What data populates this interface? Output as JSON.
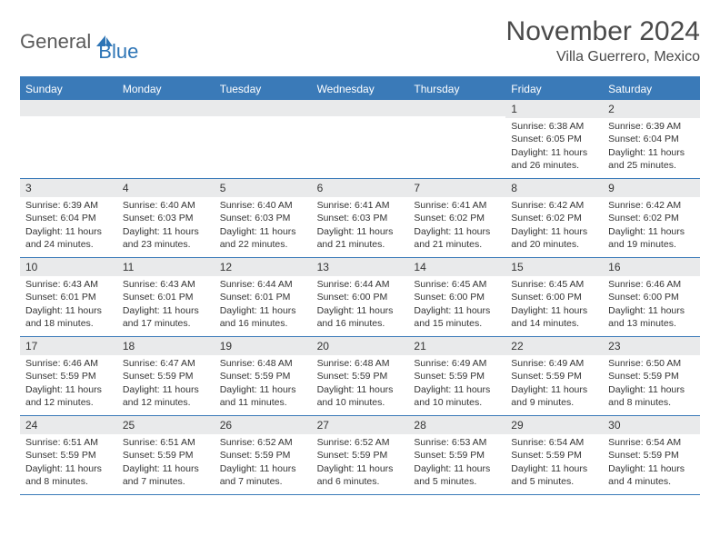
{
  "logo": {
    "text1": "General",
    "text2": "Blue"
  },
  "title": "November 2024",
  "location": "Villa Guerrero, Mexico",
  "colors": {
    "header_bg": "#3a7ab8",
    "header_text": "#ffffff",
    "daynum_bg": "#e9eaeb",
    "border": "#3a7ab8",
    "logo_gray": "#5a5a5a",
    "logo_blue": "#2e75b6",
    "text": "#333333"
  },
  "day_headers": [
    "Sunday",
    "Monday",
    "Tuesday",
    "Wednesday",
    "Thursday",
    "Friday",
    "Saturday"
  ],
  "weeks": [
    [
      {
        "empty": true
      },
      {
        "empty": true
      },
      {
        "empty": true
      },
      {
        "empty": true
      },
      {
        "empty": true
      },
      {
        "num": "1",
        "sunrise": "Sunrise: 6:38 AM",
        "sunset": "Sunset: 6:05 PM",
        "daylight": "Daylight: 11 hours and 26 minutes."
      },
      {
        "num": "2",
        "sunrise": "Sunrise: 6:39 AM",
        "sunset": "Sunset: 6:04 PM",
        "daylight": "Daylight: 11 hours and 25 minutes."
      }
    ],
    [
      {
        "num": "3",
        "sunrise": "Sunrise: 6:39 AM",
        "sunset": "Sunset: 6:04 PM",
        "daylight": "Daylight: 11 hours and 24 minutes."
      },
      {
        "num": "4",
        "sunrise": "Sunrise: 6:40 AM",
        "sunset": "Sunset: 6:03 PM",
        "daylight": "Daylight: 11 hours and 23 minutes."
      },
      {
        "num": "5",
        "sunrise": "Sunrise: 6:40 AM",
        "sunset": "Sunset: 6:03 PM",
        "daylight": "Daylight: 11 hours and 22 minutes."
      },
      {
        "num": "6",
        "sunrise": "Sunrise: 6:41 AM",
        "sunset": "Sunset: 6:03 PM",
        "daylight": "Daylight: 11 hours and 21 minutes."
      },
      {
        "num": "7",
        "sunrise": "Sunrise: 6:41 AM",
        "sunset": "Sunset: 6:02 PM",
        "daylight": "Daylight: 11 hours and 21 minutes."
      },
      {
        "num": "8",
        "sunrise": "Sunrise: 6:42 AM",
        "sunset": "Sunset: 6:02 PM",
        "daylight": "Daylight: 11 hours and 20 minutes."
      },
      {
        "num": "9",
        "sunrise": "Sunrise: 6:42 AM",
        "sunset": "Sunset: 6:02 PM",
        "daylight": "Daylight: 11 hours and 19 minutes."
      }
    ],
    [
      {
        "num": "10",
        "sunrise": "Sunrise: 6:43 AM",
        "sunset": "Sunset: 6:01 PM",
        "daylight": "Daylight: 11 hours and 18 minutes."
      },
      {
        "num": "11",
        "sunrise": "Sunrise: 6:43 AM",
        "sunset": "Sunset: 6:01 PM",
        "daylight": "Daylight: 11 hours and 17 minutes."
      },
      {
        "num": "12",
        "sunrise": "Sunrise: 6:44 AM",
        "sunset": "Sunset: 6:01 PM",
        "daylight": "Daylight: 11 hours and 16 minutes."
      },
      {
        "num": "13",
        "sunrise": "Sunrise: 6:44 AM",
        "sunset": "Sunset: 6:00 PM",
        "daylight": "Daylight: 11 hours and 16 minutes."
      },
      {
        "num": "14",
        "sunrise": "Sunrise: 6:45 AM",
        "sunset": "Sunset: 6:00 PM",
        "daylight": "Daylight: 11 hours and 15 minutes."
      },
      {
        "num": "15",
        "sunrise": "Sunrise: 6:45 AM",
        "sunset": "Sunset: 6:00 PM",
        "daylight": "Daylight: 11 hours and 14 minutes."
      },
      {
        "num": "16",
        "sunrise": "Sunrise: 6:46 AM",
        "sunset": "Sunset: 6:00 PM",
        "daylight": "Daylight: 11 hours and 13 minutes."
      }
    ],
    [
      {
        "num": "17",
        "sunrise": "Sunrise: 6:46 AM",
        "sunset": "Sunset: 5:59 PM",
        "daylight": "Daylight: 11 hours and 12 minutes."
      },
      {
        "num": "18",
        "sunrise": "Sunrise: 6:47 AM",
        "sunset": "Sunset: 5:59 PM",
        "daylight": "Daylight: 11 hours and 12 minutes."
      },
      {
        "num": "19",
        "sunrise": "Sunrise: 6:48 AM",
        "sunset": "Sunset: 5:59 PM",
        "daylight": "Daylight: 11 hours and 11 minutes."
      },
      {
        "num": "20",
        "sunrise": "Sunrise: 6:48 AM",
        "sunset": "Sunset: 5:59 PM",
        "daylight": "Daylight: 11 hours and 10 minutes."
      },
      {
        "num": "21",
        "sunrise": "Sunrise: 6:49 AM",
        "sunset": "Sunset: 5:59 PM",
        "daylight": "Daylight: 11 hours and 10 minutes."
      },
      {
        "num": "22",
        "sunrise": "Sunrise: 6:49 AM",
        "sunset": "Sunset: 5:59 PM",
        "daylight": "Daylight: 11 hours and 9 minutes."
      },
      {
        "num": "23",
        "sunrise": "Sunrise: 6:50 AM",
        "sunset": "Sunset: 5:59 PM",
        "daylight": "Daylight: 11 hours and 8 minutes."
      }
    ],
    [
      {
        "num": "24",
        "sunrise": "Sunrise: 6:51 AM",
        "sunset": "Sunset: 5:59 PM",
        "daylight": "Daylight: 11 hours and 8 minutes."
      },
      {
        "num": "25",
        "sunrise": "Sunrise: 6:51 AM",
        "sunset": "Sunset: 5:59 PM",
        "daylight": "Daylight: 11 hours and 7 minutes."
      },
      {
        "num": "26",
        "sunrise": "Sunrise: 6:52 AM",
        "sunset": "Sunset: 5:59 PM",
        "daylight": "Daylight: 11 hours and 7 minutes."
      },
      {
        "num": "27",
        "sunrise": "Sunrise: 6:52 AM",
        "sunset": "Sunset: 5:59 PM",
        "daylight": "Daylight: 11 hours and 6 minutes."
      },
      {
        "num": "28",
        "sunrise": "Sunrise: 6:53 AM",
        "sunset": "Sunset: 5:59 PM",
        "daylight": "Daylight: 11 hours and 5 minutes."
      },
      {
        "num": "29",
        "sunrise": "Sunrise: 6:54 AM",
        "sunset": "Sunset: 5:59 PM",
        "daylight": "Daylight: 11 hours and 5 minutes."
      },
      {
        "num": "30",
        "sunrise": "Sunrise: 6:54 AM",
        "sunset": "Sunset: 5:59 PM",
        "daylight": "Daylight: 11 hours and 4 minutes."
      }
    ]
  ]
}
